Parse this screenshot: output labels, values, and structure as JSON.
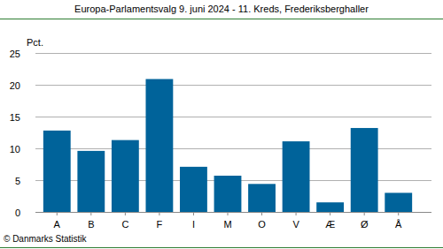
{
  "chart_data": {
    "type": "bar",
    "title": "Europa-Parlamentsvalg 9. juni 2024 - 11. Kreds, Frederiksberghaller",
    "y_label": "Pct.",
    "source": "© Danmarks Statistik",
    "categories": [
      "A",
      "B",
      "C",
      "F",
      "I",
      "M",
      "O",
      "V",
      "Æ",
      "Ø",
      "Å"
    ],
    "values": [
      12.8,
      9.6,
      11.3,
      20.9,
      7.1,
      5.7,
      4.4,
      11.1,
      1.5,
      13.2,
      3.0
    ],
    "color": "#00639a",
    "ylim": [
      0,
      25
    ],
    "yticks": [
      0,
      5,
      10,
      15,
      20,
      25
    ],
    "grid": true
  }
}
